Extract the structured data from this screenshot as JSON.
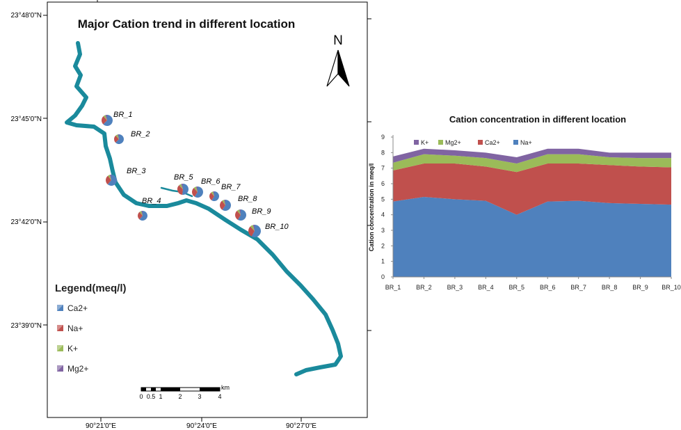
{
  "map": {
    "title": "Major Cation trend in different location",
    "north_label": "N",
    "lat_labels": [
      "23°48'0\"N",
      "23°45'0\"N",
      "23°42'0\"N",
      "23°39'0\"N"
    ],
    "lon_labels": [
      "90°21'0\"E",
      "90°24'0\"E",
      "90°27'0\"E"
    ],
    "stations": [
      "BR_1",
      "BR_2",
      "BR_3",
      "BR_4",
      "BR_5",
      "BR_6",
      "BR_7",
      "BR_8",
      "BR_9",
      "BR_10"
    ],
    "legend": {
      "title": "Legend(meq/l)",
      "items": [
        {
          "label": "Ca2+",
          "color": "#4f81bd"
        },
        {
          "label": "Na+",
          "color": "#c0504d"
        },
        {
          "label": "K+",
          "color": "#9bbb59"
        },
        {
          "label": "Mg2+",
          "color": "#8064a2"
        }
      ]
    },
    "scale": {
      "unit": "km",
      "ticks": [
        "0",
        "0.5",
        "1",
        "2",
        "3",
        "4"
      ]
    },
    "river_color": "#1a8a9c"
  },
  "chart_data": {
    "type": "area",
    "stacked": true,
    "title": "Cation concentration in different location",
    "xlabel": "",
    "ylabel": "Cation concentration in meq/l",
    "categories": [
      "BR_1",
      "BR_2",
      "BR_3",
      "BR_4",
      "BR_5",
      "BR_6",
      "BR_7",
      "BR_8",
      "BR_9",
      "BR_10"
    ],
    "ylim": [
      0,
      9
    ],
    "yticks": [
      0,
      1,
      2,
      3,
      4,
      5,
      6,
      7,
      8,
      9
    ],
    "grid": false,
    "legend_position": "top",
    "series": [
      {
        "name": "Na+",
        "color": "#4f81bd",
        "values": [
          4.85,
          5.15,
          5.0,
          4.9,
          4.0,
          4.85,
          4.9,
          4.75,
          4.7,
          4.65
        ]
      },
      {
        "name": "Ca2+",
        "color": "#c0504d",
        "values": [
          2.0,
          2.15,
          2.3,
          2.2,
          2.75,
          2.45,
          2.4,
          2.45,
          2.4,
          2.4
        ]
      },
      {
        "name": "Mg2+",
        "color": "#9bbb59",
        "values": [
          0.5,
          0.6,
          0.5,
          0.55,
          0.55,
          0.6,
          0.6,
          0.5,
          0.55,
          0.6
        ]
      },
      {
        "name": "K+",
        "color": "#8064a2",
        "values": [
          0.4,
          0.35,
          0.35,
          0.35,
          0.4,
          0.35,
          0.35,
          0.3,
          0.35,
          0.35
        ]
      }
    ],
    "legend_order": [
      "K+",
      "Mg2+",
      "Ca2+",
      "Na+"
    ]
  }
}
